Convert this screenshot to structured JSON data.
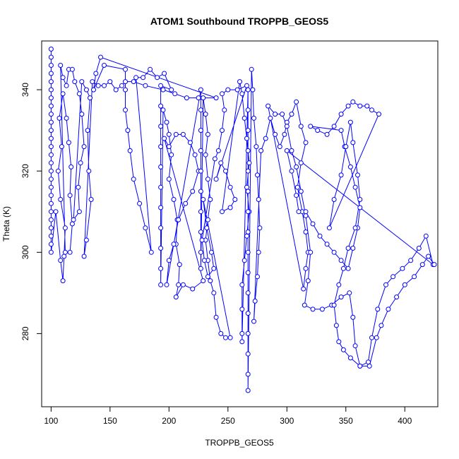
{
  "chart_data": {
    "type": "line",
    "title": "ATOM1 Southbound TROPPB_GEOS5",
    "xlabel": "TROPPB_GEOS5",
    "ylabel": "Theta (K)",
    "xlim": [
      92,
      428
    ],
    "ylim": [
      262,
      352
    ],
    "xticks": [
      100,
      150,
      200,
      250,
      300,
      350,
      400
    ],
    "yticks": [
      280,
      300,
      320,
      340
    ],
    "grid": false,
    "colors": {
      "series": "#0000ff",
      "axis": "#000000"
    },
    "series": [
      {
        "marker": "open-circle",
        "points": [
          [
            100,
            350
          ],
          [
            100,
            348
          ],
          [
            100,
            346
          ],
          [
            100,
            344
          ],
          [
            100,
            342
          ],
          [
            100,
            340
          ],
          [
            100,
            338
          ],
          [
            100,
            336
          ],
          [
            100,
            334
          ],
          [
            100,
            332
          ],
          [
            100,
            330
          ],
          [
            100,
            328
          ],
          [
            100,
            326
          ],
          [
            100,
            324
          ],
          [
            100,
            322
          ],
          [
            100,
            320
          ],
          [
            100,
            318
          ],
          [
            100,
            316
          ],
          [
            100,
            314
          ],
          [
            100,
            312
          ],
          [
            100,
            310
          ],
          [
            100,
            308
          ],
          [
            100,
            306
          ],
          [
            100,
            304
          ],
          [
            100,
            302
          ],
          [
            100,
            300
          ],
          [
            104,
            310
          ],
          [
            108,
            298
          ],
          [
            110,
            293
          ],
          [
            111,
            299
          ],
          [
            112,
            306
          ],
          [
            108,
            313
          ],
          [
            106,
            320
          ],
          [
            109,
            326
          ],
          [
            107,
            333
          ],
          [
            110,
            339
          ],
          [
            113,
            333
          ],
          [
            115,
            327
          ],
          [
            117,
            321
          ],
          [
            116,
            314
          ],
          [
            118,
            307
          ],
          [
            116,
            300
          ],
          [
            112,
            300
          ],
          [
            108,
            346
          ],
          [
            110,
            343
          ],
          [
            113,
            341
          ],
          [
            115,
            345
          ],
          [
            118,
            345
          ],
          [
            120,
            342
          ],
          [
            124,
            339
          ],
          [
            126,
            334
          ],
          [
            128,
            326
          ],
          [
            125,
            322
          ],
          [
            123,
            316
          ],
          [
            124,
            310
          ],
          [
            119,
            308
          ],
          [
            126,
            342
          ],
          [
            130,
            340
          ],
          [
            133,
            338
          ],
          [
            131,
            330
          ],
          [
            132,
            320
          ],
          [
            134,
            313
          ],
          [
            130,
            303
          ],
          [
            128,
            299
          ],
          [
            135,
            342
          ],
          [
            140,
            341
          ],
          [
            145,
            341
          ],
          [
            150,
            342
          ],
          [
            155,
            340
          ],
          [
            160,
            341
          ],
          [
            163,
            342
          ],
          [
            170,
            342
          ],
          [
            180,
            341
          ],
          [
            195,
            340
          ],
          [
            205,
            339
          ],
          [
            215,
            338
          ],
          [
            225,
            338
          ],
          [
            240,
            338
          ],
          [
            142,
            348
          ],
          [
            138,
            344
          ],
          [
            136,
            340
          ],
          [
            145,
            346
          ],
          [
            163,
            345
          ],
          [
            163,
            340
          ],
          [
            163,
            335
          ],
          [
            165,
            330
          ],
          [
            167,
            325
          ],
          [
            170,
            318
          ],
          [
            175,
            312
          ],
          [
            180,
            306
          ],
          [
            185,
            300
          ],
          [
            172,
            343
          ],
          [
            178,
            343
          ],
          [
            184,
            345
          ],
          [
            190,
            343
          ],
          [
            196,
            344
          ],
          [
            202,
            340
          ],
          [
            193,
            341
          ],
          [
            193,
            336
          ],
          [
            193,
            331
          ],
          [
            193,
            326
          ],
          [
            193,
            321
          ],
          [
            193,
            316
          ],
          [
            193,
            311
          ],
          [
            193,
            306
          ],
          [
            193,
            301
          ],
          [
            193,
            296
          ],
          [
            193,
            292
          ],
          [
            195,
            335
          ],
          [
            198,
            332
          ],
          [
            200,
            329
          ],
          [
            202,
            324
          ],
          [
            200,
            318
          ],
          [
            204,
            313
          ],
          [
            207,
            308
          ],
          [
            206,
            302
          ],
          [
            209,
            297
          ],
          [
            208,
            292
          ],
          [
            206,
            289
          ],
          [
            212,
            292
          ],
          [
            220,
            291
          ],
          [
            229,
            293
          ],
          [
            196,
            328
          ],
          [
            200,
            326
          ],
          [
            206,
            329
          ],
          [
            212,
            329
          ],
          [
            218,
            327
          ],
          [
            222,
            324
          ],
          [
            225,
            320
          ],
          [
            220,
            315
          ],
          [
            214,
            312
          ],
          [
            208,
            308
          ],
          [
            204,
            302
          ],
          [
            200,
            298
          ],
          [
            198,
            292
          ],
          [
            227,
            340
          ],
          [
            227,
            335
          ],
          [
            227,
            330
          ],
          [
            227,
            325
          ],
          [
            227,
            320
          ],
          [
            227,
            315
          ],
          [
            227,
            310
          ],
          [
            227,
            305
          ],
          [
            227,
            300
          ],
          [
            227,
            296
          ],
          [
            229,
            338
          ],
          [
            231,
            334
          ],
          [
            233,
            329
          ],
          [
            231,
            324
          ],
          [
            233,
            318
          ],
          [
            235,
            313
          ],
          [
            233,
            308
          ],
          [
            231,
            303
          ],
          [
            233,
            298
          ],
          [
            235,
            293
          ],
          [
            238,
            290
          ],
          [
            240,
            284
          ],
          [
            244,
            280
          ],
          [
            248,
            279
          ],
          [
            252,
            279
          ],
          [
            229,
            313
          ],
          [
            232,
            306
          ],
          [
            236,
            300
          ],
          [
            238,
            296
          ],
          [
            233,
            294
          ],
          [
            230,
            298
          ],
          [
            228,
            303
          ],
          [
            239,
            323
          ],
          [
            242,
            325
          ],
          [
            245,
            330
          ],
          [
            247,
            335
          ],
          [
            245,
            339
          ],
          [
            250,
            340
          ],
          [
            258,
            340
          ],
          [
            266,
            341
          ],
          [
            240,
            318
          ],
          [
            244,
            322
          ],
          [
            248,
            320
          ],
          [
            252,
            316
          ],
          [
            256,
            313
          ],
          [
            252,
            311
          ],
          [
            245,
            310
          ],
          [
            260,
            342
          ],
          [
            262,
            339
          ],
          [
            264,
            333
          ],
          [
            266,
            328
          ],
          [
            268,
            322
          ],
          [
            266,
            316
          ],
          [
            268,
            310
          ],
          [
            266,
            304
          ],
          [
            264,
            298
          ],
          [
            262,
            292
          ],
          [
            262,
            286
          ],
          [
            262,
            280
          ],
          [
            262,
            278
          ],
          [
            267,
            340
          ],
          [
            267,
            335
          ],
          [
            267,
            330
          ],
          [
            267,
            325
          ],
          [
            267,
            320
          ],
          [
            267,
            315
          ],
          [
            267,
            310
          ],
          [
            267,
            305
          ],
          [
            267,
            300
          ],
          [
            267,
            295
          ],
          [
            267,
            290
          ],
          [
            267,
            285
          ],
          [
            267,
            280
          ],
          [
            267,
            275
          ],
          [
            267,
            270
          ],
          [
            267,
            266
          ],
          [
            270,
            345
          ],
          [
            271,
            340
          ],
          [
            272,
            333
          ],
          [
            274,
            326
          ],
          [
            275,
            319
          ],
          [
            276,
            313
          ],
          [
            277,
            306
          ],
          [
            276,
            300
          ],
          [
            275,
            294
          ],
          [
            273,
            288
          ],
          [
            272,
            283
          ],
          [
            278,
            325
          ],
          [
            282,
            328
          ],
          [
            286,
            333
          ],
          [
            290,
            329
          ],
          [
            294,
            326
          ],
          [
            298,
            329
          ],
          [
            300,
            332
          ],
          [
            304,
            334
          ],
          [
            308,
            337
          ],
          [
            312,
            331
          ],
          [
            316,
            327
          ],
          [
            312,
            322
          ],
          [
            309,
            316
          ],
          [
            313,
            310
          ],
          [
            316,
            305
          ],
          [
            318,
            300
          ],
          [
            316,
            296
          ],
          [
            314,
            291
          ],
          [
            284,
            336
          ],
          [
            290,
            334
          ],
          [
            296,
            334
          ],
          [
            300,
            331
          ],
          [
            304,
            325
          ],
          [
            308,
            321
          ],
          [
            312,
            315
          ],
          [
            316,
            309
          ],
          [
            320,
            300
          ],
          [
            318,
            293
          ],
          [
            315,
            287
          ],
          [
            322,
            286
          ],
          [
            330,
            286
          ],
          [
            338,
            287
          ],
          [
            346,
            289
          ],
          [
            353,
            290
          ],
          [
            356,
            284
          ],
          [
            358,
            277
          ],
          [
            362,
            272
          ],
          [
            369,
            273
          ],
          [
            372,
            279
          ],
          [
            377,
            286
          ],
          [
            384,
            292
          ],
          [
            390,
            294
          ],
          [
            398,
            296
          ],
          [
            405,
            298
          ],
          [
            412,
            301
          ],
          [
            418,
            304
          ],
          [
            424,
            297
          ],
          [
            300,
            325
          ],
          [
            304,
            320
          ],
          [
            308,
            314
          ],
          [
            310,
            310
          ],
          [
            316,
            310
          ],
          [
            322,
            307
          ],
          [
            328,
            304
          ],
          [
            334,
            302
          ],
          [
            340,
            300
          ],
          [
            346,
            298
          ],
          [
            352,
            296
          ],
          [
            356,
            301
          ],
          [
            360,
            306
          ],
          [
            362,
            311
          ],
          [
            358,
            316
          ],
          [
            354,
            321
          ],
          [
            349,
            326
          ],
          [
            346,
            330
          ],
          [
            320,
            331
          ],
          [
            326,
            330
          ],
          [
            334,
            329
          ],
          [
            340,
            331
          ],
          [
            346,
            334
          ],
          [
            352,
            336
          ],
          [
            356,
            337
          ],
          [
            362,
            336
          ],
          [
            368,
            336
          ],
          [
            372,
            335
          ],
          [
            378,
            334
          ],
          [
            336,
            306
          ],
          [
            340,
            313
          ],
          [
            346,
            319
          ],
          [
            350,
            326
          ],
          [
            354,
            332
          ],
          [
            356,
            327
          ],
          [
            360,
            319
          ],
          [
            362,
            313
          ],
          [
            358,
            306
          ],
          [
            352,
            301
          ],
          [
            348,
            296
          ],
          [
            344,
            292
          ],
          [
            340,
            287
          ],
          [
            342,
            282
          ],
          [
            344,
            278
          ],
          [
            348,
            276
          ],
          [
            354,
            274
          ],
          [
            362,
            272
          ],
          [
            370,
            272
          ],
          [
            376,
            279
          ],
          [
            380,
            282
          ],
          [
            386,
            286
          ],
          [
            393,
            289
          ],
          [
            400,
            292
          ],
          [
            408,
            294
          ],
          [
            415,
            297
          ],
          [
            420,
            299
          ],
          [
            425,
            297
          ]
        ]
      }
    ]
  }
}
